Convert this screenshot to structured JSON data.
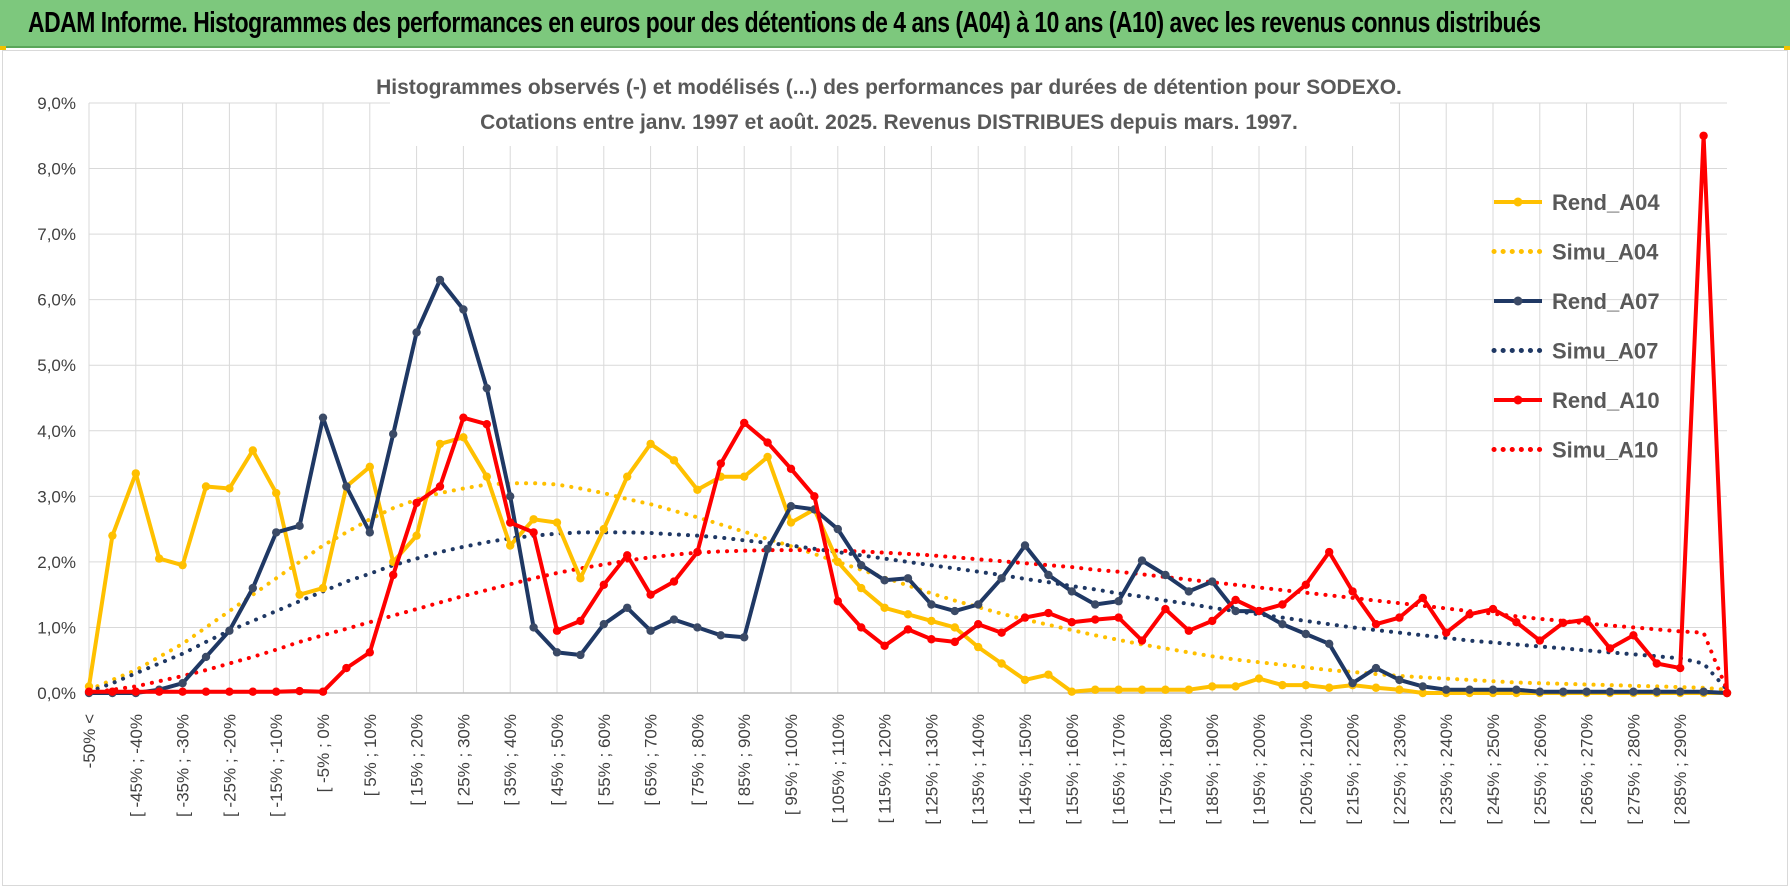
{
  "banner": {
    "title": "ADAM Informe. Histogrammes des performances en euros pour des détentions de 4 ans (A04) à 10 ans (A10) avec les revenus connus distribués"
  },
  "colors": {
    "yellow": "#ffc000",
    "navy": "#1f3864",
    "red": "#ff0000",
    "banner": "#7dc87d",
    "grid": "#d9d9d9"
  },
  "chart_data": {
    "type": "line",
    "title": "Histogrammes observés (-) et modélisés (...) des performances par durées de détention pour SODEXO.",
    "subtitle": "Cotations entre janv. 1997 et août. 2025. Revenus DISTRIBUES depuis mars. 1997.",
    "xlabel": "",
    "ylabel": "",
    "ylim": [
      0,
      9
    ],
    "y_ticks": [
      "0,0%",
      "1,0%",
      "2,0%",
      "3,0%",
      "4,0%",
      "5,0%",
      "6,0%",
      "7,0%",
      "8,0%",
      "9,0%"
    ],
    "grid": true,
    "legend_position": "right",
    "x_tick_labels": [
      "-50% <",
      "[ -45% ; -40%",
      "[ -35% ; -30%",
      "[ -25% ; -20%",
      "[ -15% ; -10%",
      "[ -5% ; 0%",
      "[ 5% ; 10%",
      "[ 15% ; 20%",
      "[ 25% ; 30%",
      "[ 35% ; 40%",
      "[ 45% ; 50%",
      "[ 55% ; 60%",
      "[ 65% ; 70%",
      "[ 75% ; 80%",
      "[ 85% ; 90%",
      "[ 95% ; 100%",
      "[ 105% ; 110%",
      "[ 115% ; 120%",
      "[ 125% ; 130%",
      "[ 135% ; 140%",
      "[ 145% ; 150%",
      "[ 155% ; 160%",
      "[ 165% ; 170%",
      "[ 175% ; 180%",
      "[ 185% ; 190%",
      "[ 195% ; 200%",
      "[ 205% ; 210%",
      "[ 215% ; 220%",
      "[ 225% ; 230%",
      "[ 235% ; 240%",
      "[ 245% ; 250%",
      "[ 255% ; 260%",
      "[ 265% ; 270%",
      "[ 275% ; 280%",
      "[ 285% ; 290%"
    ],
    "series": [
      {
        "name": "Rend_A04",
        "style": "solid",
        "color": "#ffc000",
        "values": [
          0.1,
          2.4,
          3.35,
          2.05,
          1.95,
          3.15,
          3.12,
          3.7,
          3.05,
          1.5,
          1.6,
          3.15,
          3.45,
          2.0,
          2.4,
          3.8,
          3.9,
          3.3,
          2.25,
          2.65,
          2.6,
          1.75,
          2.5,
          3.3,
          3.8,
          3.55,
          3.1,
          3.3,
          3.3,
          3.6,
          2.6,
          2.8,
          2.0,
          1.6,
          1.3,
          1.2,
          1.1,
          1.0,
          0.7,
          0.45,
          0.2,
          0.28,
          0.02,
          0.05,
          0.05,
          0.05,
          0.05,
          0.05,
          0.1,
          0.1,
          0.22,
          0.12,
          0.12,
          0.08,
          0.12,
          0.08,
          0.05,
          0.0,
          0.0,
          0.0,
          0.0,
          0.0,
          0.0,
          0.0,
          0.0,
          0.0,
          0.0,
          0.0,
          0.0,
          0.0,
          0.0
        ]
      },
      {
        "name": "Simu_A04",
        "style": "dotted",
        "color": "#ffc000",
        "values": [
          0.05,
          0.2,
          0.35,
          0.55,
          0.75,
          1.0,
          1.25,
          1.5,
          1.75,
          2.0,
          2.25,
          2.45,
          2.65,
          2.82,
          2.95,
          3.05,
          3.12,
          3.18,
          3.2,
          3.2,
          3.18,
          3.12,
          3.05,
          2.96,
          2.88,
          2.78,
          2.68,
          2.57,
          2.46,
          2.35,
          2.24,
          2.12,
          2.0,
          1.88,
          1.76,
          1.64,
          1.52,
          1.41,
          1.31,
          1.21,
          1.12,
          1.04,
          0.96,
          0.88,
          0.81,
          0.74,
          0.68,
          0.62,
          0.56,
          0.51,
          0.47,
          0.43,
          0.39,
          0.35,
          0.32,
          0.29,
          0.26,
          0.24,
          0.22,
          0.2,
          0.18,
          0.16,
          0.15,
          0.14,
          0.13,
          0.12,
          0.11,
          0.1,
          0.09,
          0.08,
          0.05
        ]
      },
      {
        "name": "Rend_A07",
        "style": "solid",
        "color": "#1f3864",
        "values": [
          0.0,
          0.0,
          0.0,
          0.05,
          0.15,
          0.55,
          0.95,
          1.6,
          2.45,
          2.55,
          4.2,
          3.15,
          2.45,
          3.95,
          5.5,
          6.3,
          5.85,
          4.65,
          3.0,
          1.0,
          0.62,
          0.58,
          1.05,
          1.3,
          0.95,
          1.12,
          1.0,
          0.88,
          0.85,
          2.2,
          2.85,
          2.8,
          2.5,
          1.95,
          1.72,
          1.75,
          1.35,
          1.25,
          1.35,
          1.75,
          2.25,
          1.8,
          1.55,
          1.35,
          1.4,
          2.02,
          1.8,
          1.55,
          1.7,
          1.25,
          1.25,
          1.05,
          0.9,
          0.75,
          0.15,
          0.38,
          0.2,
          0.1,
          0.05,
          0.05,
          0.05,
          0.05,
          0.02,
          0.02,
          0.02,
          0.02,
          0.02,
          0.02,
          0.02,
          0.02,
          0.0
        ]
      },
      {
        "name": "Simu_A07",
        "style": "dotted",
        "color": "#1f3864",
        "values": [
          0.02,
          0.15,
          0.3,
          0.45,
          0.6,
          0.78,
          0.95,
          1.1,
          1.25,
          1.4,
          1.55,
          1.7,
          1.82,
          1.95,
          2.05,
          2.15,
          2.23,
          2.3,
          2.36,
          2.4,
          2.43,
          2.45,
          2.45,
          2.45,
          2.44,
          2.42,
          2.4,
          2.37,
          2.33,
          2.29,
          2.25,
          2.2,
          2.15,
          2.1,
          2.05,
          2.0,
          1.95,
          1.9,
          1.85,
          1.8,
          1.74,
          1.69,
          1.63,
          1.58,
          1.52,
          1.47,
          1.41,
          1.36,
          1.3,
          1.25,
          1.2,
          1.15,
          1.1,
          1.05,
          1.0,
          0.96,
          0.92,
          0.88,
          0.84,
          0.8,
          0.77,
          0.74,
          0.71,
          0.68,
          0.65,
          0.62,
          0.59,
          0.56,
          0.53,
          0.45,
          0.05
        ]
      },
      {
        "name": "Rend_A10",
        "style": "solid",
        "color": "#ff0000",
        "values": [
          0.02,
          0.02,
          0.02,
          0.02,
          0.02,
          0.02,
          0.02,
          0.02,
          0.02,
          0.03,
          0.02,
          0.38,
          0.62,
          1.8,
          2.9,
          3.15,
          4.2,
          4.1,
          2.6,
          2.45,
          0.95,
          1.1,
          1.65,
          2.1,
          1.5,
          1.7,
          2.15,
          3.5,
          4.12,
          3.82,
          3.42,
          3.0,
          1.4,
          1.0,
          0.72,
          0.97,
          0.82,
          0.78,
          1.05,
          0.92,
          1.15,
          1.22,
          1.08,
          1.12,
          1.15,
          0.8,
          1.28,
          0.95,
          1.1,
          1.42,
          1.25,
          1.35,
          1.65,
          2.15,
          1.55,
          1.05,
          1.15,
          1.45,
          0.92,
          1.2,
          1.28,
          1.08,
          0.8,
          1.07,
          1.12,
          0.68,
          0.88,
          0.45,
          0.38,
          8.5,
          0.0
        ]
      },
      {
        "name": "Simu_A10",
        "style": "dotted",
        "color": "#ff0000",
        "values": [
          0.0,
          0.05,
          0.1,
          0.18,
          0.26,
          0.35,
          0.45,
          0.55,
          0.66,
          0.78,
          0.88,
          0.98,
          1.08,
          1.18,
          1.28,
          1.38,
          1.48,
          1.57,
          1.66,
          1.75,
          1.83,
          1.9,
          1.96,
          2.02,
          2.07,
          2.11,
          2.14,
          2.16,
          2.17,
          2.18,
          2.18,
          2.18,
          2.17,
          2.16,
          2.14,
          2.12,
          2.1,
          2.07,
          2.04,
          2.01,
          1.98,
          1.95,
          1.92,
          1.88,
          1.85,
          1.81,
          1.77,
          1.73,
          1.69,
          1.65,
          1.61,
          1.57,
          1.53,
          1.49,
          1.45,
          1.41,
          1.37,
          1.33,
          1.29,
          1.25,
          1.21,
          1.17,
          1.13,
          1.1,
          1.06,
          1.03,
          1.0,
          0.97,
          0.94,
          0.92,
          0.05
        ]
      }
    ]
  }
}
